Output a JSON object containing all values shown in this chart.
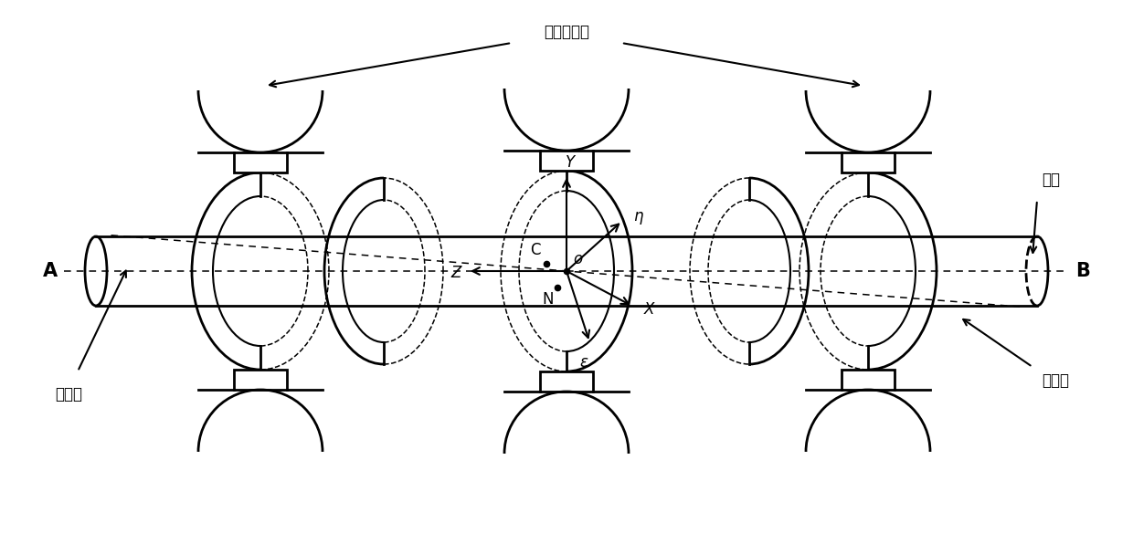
{
  "title": "主动磁轴承",
  "label_A": "A",
  "label_B": "B",
  "label_rotor": "转子",
  "label_geo_axis": "几何轴",
  "label_inertia_axis": "惯性轴",
  "label_Y": "Y",
  "label_Z": "Z",
  "label_X": "X",
  "label_eta": "η",
  "label_epsilon": "ε",
  "label_C": "C",
  "label_N": "N",
  "label_O": "o",
  "bg_color": "#ffffff",
  "figsize": [
    12.4,
    6.07
  ],
  "dpi": 100,
  "xlim": [
    0,
    12.4
  ],
  "ylim": [
    0,
    6.07
  ]
}
